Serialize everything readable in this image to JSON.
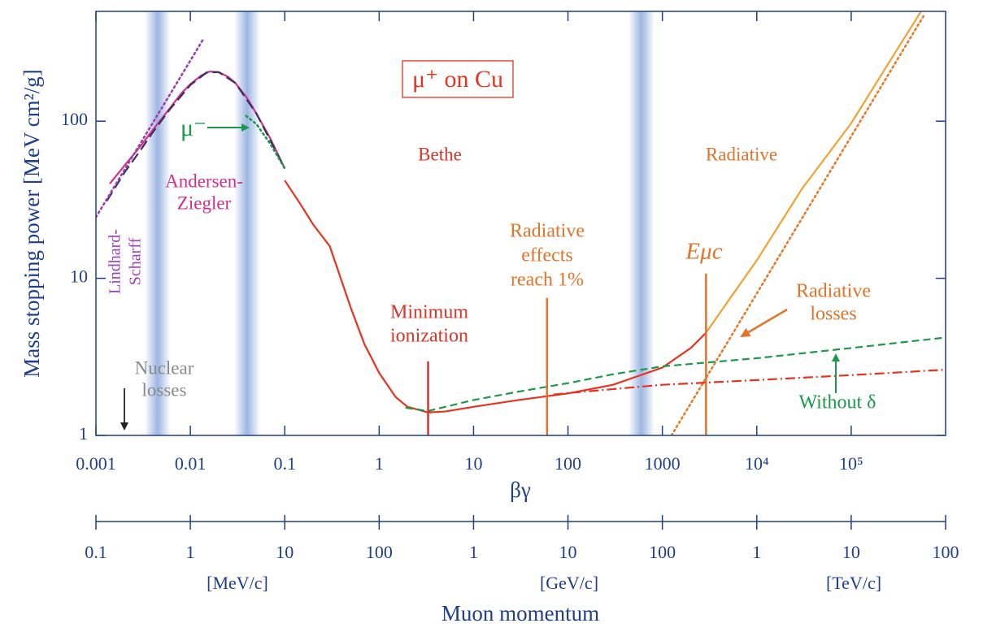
{
  "chart_data": {
    "type": "line",
    "log_x": true,
    "log_y": true,
    "xlabel": "βγ",
    "ylabel": "Mass stopping power [MeV cm²/g]",
    "xlim": [
      0.001,
      1000000
    ],
    "ylim": [
      1,
      500
    ],
    "xticks": [
      0.001,
      0.01,
      0.1,
      1,
      10,
      100,
      1000,
      {
        "value": 10000,
        "label": "10⁴"
      },
      {
        "value": 100000,
        "label": "10⁵"
      }
    ],
    "yticks": [
      1,
      10,
      100
    ],
    "x2lim": [
      0.1,
      100000000
    ],
    "x2ticks": [
      0.1,
      1,
      10,
      100,
      {
        "value": 1000,
        "label": "1"
      },
      {
        "value": 10000,
        "label": "10"
      },
      {
        "value": 100000,
        "label": "100"
      },
      {
        "value": 1000000,
        "label": "1"
      },
      {
        "value": 10000000,
        "label": "10"
      },
      {
        "value": 100000000,
        "label": "100"
      }
    ],
    "x2_units": [
      "[MeV/c]",
      "[GeV/c]",
      "[TeV/c]"
    ],
    "x2label": "Muon momentum",
    "axis_color": "#1f3f8c",
    "bands": [
      0.0045,
      0.04,
      600
    ],
    "band_color": "#9db6e2",
    "series": [
      {
        "color": "#d6308a",
        "style": "solid",
        "x": [
          0.0014,
          0.002,
          0.003,
          0.004,
          0.006,
          0.008,
          0.01,
          0.013,
          0.016,
          0.02,
          0.025,
          0.03,
          0.04,
          0.05,
          0.07,
          0.1
        ],
        "values": [
          40,
          52,
          70,
          88,
          120,
          150,
          172,
          195,
          207,
          205,
          192,
          175,
          140,
          112,
          78,
          50
        ]
      },
      {
        "color": "#3a3060",
        "style": "longdash",
        "x": [
          0.0013,
          0.002,
          0.003,
          0.004,
          0.006,
          0.01,
          0.015,
          0.02,
          0.03,
          0.05,
          0.07,
          0.1
        ],
        "values": [
          31,
          47,
          66,
          85,
          118,
          170,
          205,
          205,
          175,
          112,
          76,
          50
        ]
      },
      {
        "color": "#9b3fb5",
        "style": "dotted",
        "x": [
          0.001,
          0.014
        ],
        "values": [
          24.5,
          340
        ]
      },
      {
        "color": "#1a9a4a",
        "style": "dotted",
        "x": [
          0.039,
          0.05,
          0.07,
          0.1
        ],
        "values": [
          108,
          96,
          72,
          50
        ]
      },
      {
        "color": "#e8321e",
        "style": "solid",
        "x": [
          0.1,
          0.15,
          0.2,
          0.3,
          0.5,
          0.7,
          1,
          1.5,
          2,
          3.3,
          5,
          10,
          30,
          100,
          300,
          1000,
          2000,
          2900
        ],
        "values": [
          42,
          29,
          22,
          16,
          6.5,
          3.8,
          2.5,
          1.75,
          1.52,
          1.4,
          1.42,
          1.52,
          1.68,
          1.85,
          2.1,
          2.7,
          3.6,
          4.5
        ]
      },
      {
        "color": "#f5a030",
        "style": "solid",
        "x": [
          2900,
          5000,
          10000,
          30000,
          100000,
          300000,
          550000
        ],
        "values": [
          4.5,
          7.2,
          13,
          37,
          97,
          280,
          500
        ]
      },
      {
        "color": "#e87a2a",
        "style": "dotted",
        "x": [
          1250,
          10000,
          100000,
          600000
        ],
        "values": [
          1,
          8,
          80,
          480
        ]
      },
      {
        "color": "#1a9a4a",
        "style": "dashed",
        "x": [
          1.9,
          3.3,
          10,
          30,
          100,
          300,
          1000,
          10000,
          100000,
          1000000
        ],
        "values": [
          1.5,
          1.43,
          1.68,
          1.9,
          2.15,
          2.45,
          2.75,
          3.1,
          3.6,
          4.2
        ]
      },
      {
        "color": "#e8321e",
        "style": "dashdot",
        "x": [
          70,
          100,
          1000,
          10000,
          100000,
          1000000
        ],
        "values": [
          1.82,
          1.86,
          2.1,
          2.25,
          2.42,
          2.62
        ]
      }
    ],
    "markers": [
      {
        "x": 3.3,
        "top": 2.96,
        "color": "#d9342b"
      },
      {
        "x": 60,
        "top": 7.5,
        "color": "#e0742a"
      },
      {
        "x": 2900,
        "top": 10.7,
        "color": "#e0742a"
      }
    ],
    "annotations": [
      {
        "lines": [
          "μ⁺ on Cu"
        ],
        "color": "#e8321e"
      },
      {
        "lines": [
          "Bethe"
        ],
        "color": "#d9342b"
      },
      {
        "lines": [
          "Radiative"
        ],
        "color": "#e0742a"
      },
      {
        "lines": [
          "Andersen-",
          "Ziegler"
        ],
        "color": "#d12f8a"
      },
      {
        "lines": [
          "Lindhard-",
          "Scharff"
        ],
        "color": "#9b3fb5"
      },
      {
        "lines": [
          "Nuclear",
          "losses"
        ],
        "color": "#8a8a8a"
      },
      {
        "lines": [
          "Minimum",
          "ionization"
        ],
        "color": "#d9342b"
      },
      {
        "lines": [
          "Radiative",
          "effects",
          "reach 1%"
        ],
        "color": "#e0742a"
      },
      {
        "lines": [
          "Eμc"
        ],
        "color": "#e0742a"
      },
      {
        "lines": [
          "Radiative",
          "losses"
        ],
        "color": "#e0742a"
      },
      {
        "lines": [
          "Without  δ"
        ],
        "color": "#1a9a4a"
      },
      {
        "lines": [
          "μ⁻"
        ],
        "color": "#1a9a4a"
      }
    ]
  }
}
